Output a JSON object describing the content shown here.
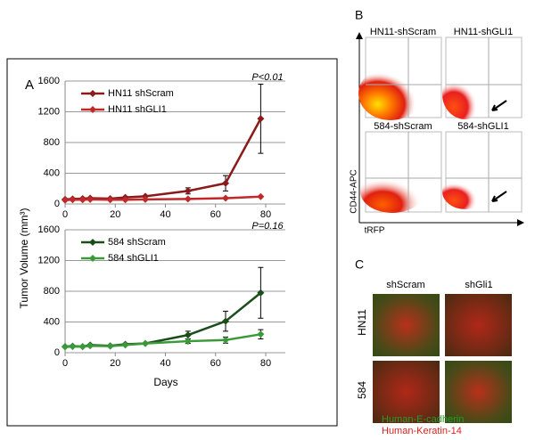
{
  "panel_a": {
    "label": "A",
    "y_label": "Tumor Volume (mm³)",
    "x_label": "Days"
  },
  "chart_data": [
    {
      "type": "line",
      "annotation": "P<0.01",
      "x": [
        0,
        3,
        7,
        10,
        18,
        24,
        32,
        49,
        64,
        78
      ],
      "series": [
        {
          "name": "HN11 shScram",
          "color": "#8b1a1a",
          "values": [
            60,
            65,
            70,
            75,
            70,
            85,
            100,
            170,
            270,
            1110
          ],
          "errors": [
            null,
            null,
            null,
            null,
            null,
            null,
            null,
            40,
            100,
            450
          ]
        },
        {
          "name": "HN11 shGLI1",
          "color": "#c0282a",
          "values": [
            50,
            55,
            55,
            60,
            55,
            55,
            60,
            65,
            75,
            95
          ],
          "errors": [
            null,
            null,
            null,
            null,
            null,
            null,
            null,
            null,
            null,
            null
          ]
        }
      ],
      "xlim": [
        0,
        80
      ],
      "xticks": [
        0,
        20,
        40,
        60,
        80
      ],
      "ylim": [
        0,
        1600
      ],
      "yticks": [
        0,
        400,
        800,
        1200,
        1600
      ],
      "grid": true
    },
    {
      "type": "line",
      "annotation": "P=0.16",
      "x": [
        0,
        3,
        7,
        10,
        18,
        24,
        32,
        49,
        64,
        78
      ],
      "series": [
        {
          "name": "584 shScram",
          "color": "#1b4d1b",
          "values": [
            80,
            85,
            80,
            100,
            90,
            110,
            120,
            230,
            410,
            780
          ],
          "errors": [
            null,
            null,
            null,
            null,
            null,
            null,
            null,
            50,
            130,
            330
          ]
        },
        {
          "name": "584 shGLI1",
          "color": "#3a9a3a",
          "values": [
            75,
            80,
            80,
            90,
            85,
            100,
            120,
            150,
            165,
            240
          ],
          "errors": [
            null,
            null,
            null,
            null,
            null,
            null,
            null,
            30,
            40,
            60
          ]
        }
      ],
      "xlim": [
        0,
        80
      ],
      "xticks": [
        0,
        20,
        40,
        60,
        80
      ],
      "ylim": [
        0,
        1600
      ],
      "yticks": [
        0,
        400,
        800,
        1200,
        1600
      ],
      "grid": true
    }
  ],
  "panel_b": {
    "label": "B",
    "plots": [
      "HN11-shScram",
      "HN11-shGLI1",
      "584-shScram",
      "584-shGLI1"
    ],
    "y_axis": "CD44-APC",
    "x_axis": "tRFP"
  },
  "panel_c": {
    "label": "C",
    "columns": [
      "shScram",
      "shGli1"
    ],
    "rows": [
      "HN11",
      "584"
    ],
    "stains": [
      "Human-E-cadherin",
      "Human-Keratin-14"
    ]
  }
}
